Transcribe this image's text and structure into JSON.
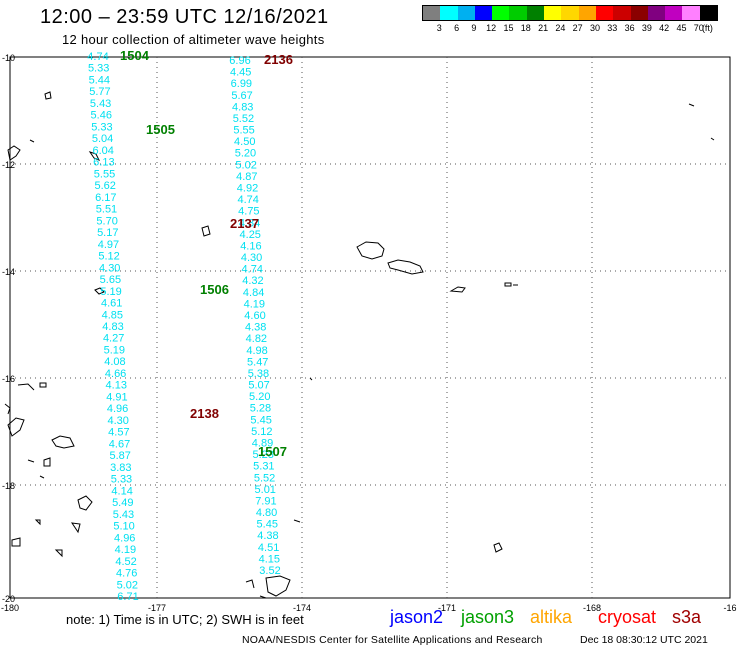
{
  "header": {
    "title": "12:00 – 23:59 UTC 12/16/2021",
    "subtitle": "12 hour collection of altimeter wave heights"
  },
  "colorbar": {
    "colors": [
      "#7f7f7f",
      "#00ffff",
      "#00b0f0",
      "#0000ff",
      "#00ff00",
      "#00cc00",
      "#008000",
      "#ffff00",
      "#ffd700",
      "#ffa500",
      "#ff0000",
      "#cc0000",
      "#8b0000",
      "#800080",
      "#c000c0",
      "#ff80ff",
      "#000000"
    ],
    "labels": [
      "3",
      "6",
      "9",
      "12",
      "15",
      "18",
      "21",
      "24",
      "27",
      "30",
      "33",
      "36",
      "39",
      "42",
      "45",
      "70",
      "(ft)"
    ]
  },
  "map": {
    "lat_ticks": [
      "-10",
      "-12",
      "-14",
      "-16",
      "-18",
      "-20"
    ],
    "lon_ticks": [
      "-180",
      "-177",
      "-174",
      "-171",
      "-168",
      "-16"
    ],
    "track_color": "#00e0f0",
    "passes": [
      {
        "label": "1504",
        "color": "#008000"
      },
      {
        "label": "1505",
        "color": "#008000"
      },
      {
        "label": "1506",
        "color": "#008000"
      },
      {
        "label": "1507",
        "color": "#008000"
      },
      {
        "label": "2136",
        "color": "#800000"
      },
      {
        "label": "2137",
        "color": "#800000"
      },
      {
        "label": "2138",
        "color": "#800000"
      }
    ],
    "track_a_values": [
      "4.74",
      "5.33",
      "5.44",
      "5.77",
      "5.43",
      "5.46",
      "5.33",
      "5.04",
      "6.04",
      "6.13",
      "5.55",
      "5.62",
      "6.17",
      "5.51",
      "5.70",
      "5.17",
      "4.97",
      "5.12",
      "4.30",
      "5.65",
      "5.19",
      "4.61",
      "4.85",
      "4.83",
      "4.27",
      "5.19",
      "4.08",
      "4.66",
      "4.13",
      "4.91",
      "4.96",
      "4.30",
      "4.57",
      "4.67",
      "5.87",
      "3.83",
      "5.33",
      "4.14",
      "5.49",
      "5.43",
      "5.10",
      "4.96",
      "4.19",
      "4.52",
      "4.76",
      "5.02",
      "6.71"
    ],
    "track_b_values": [
      "6.96",
      "4.45",
      "6.99",
      "5.67",
      "4.83",
      "5.52",
      "5.55",
      "4.50",
      "5.20",
      "5.02",
      "4.87",
      "4.92",
      "4.74",
      "4.75",
      "4.34",
      "4.25",
      "4.16",
      "4.30",
      "4.74",
      "4.32",
      "4.84",
      "4.19",
      "4.60",
      "4.38",
      "4.82",
      "4.98",
      "5.47",
      "5.38",
      "5.07",
      "5.20",
      "5.28",
      "5.45",
      "5.12",
      "4.89",
      "5.23",
      "5.31",
      "5.52",
      "5.01",
      "7.91",
      "4.80",
      "5.45",
      "4.38",
      "4.51",
      "4.15",
      "3.52"
    ]
  },
  "footer": {
    "note": "note:  1) Time is in UTC;  2) SWH is in feet",
    "legend": [
      {
        "name": "jason2",
        "color": "#0000ff"
      },
      {
        "name": "jason3",
        "color": "#00a000"
      },
      {
        "name": "altika",
        "color": "#ffa500"
      },
      {
        "name": "cryosat",
        "color": "#ff0000"
      },
      {
        "name": "s3a",
        "color": "#a00000"
      }
    ],
    "credit": "NOAA/NESDIS Center for Satellite Applications and Research",
    "timestamp": "Dec 18 08:30:12 UTC 2021"
  }
}
